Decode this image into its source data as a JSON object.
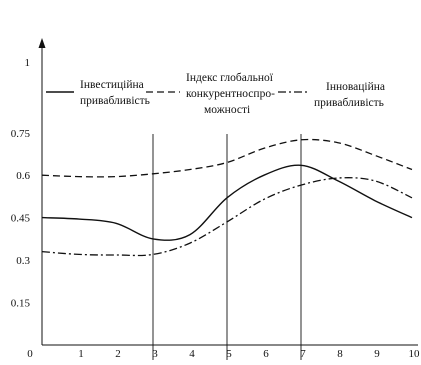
{
  "chart_data": {
    "type": "line",
    "title": "",
    "xlabel": "",
    "ylabel": "",
    "x": [
      0,
      1,
      2,
      3,
      4,
      5,
      6,
      7,
      8,
      9,
      10
    ],
    "xticks": [
      "0",
      "1",
      "2",
      "3",
      "4",
      "5",
      "6",
      "7",
      "8",
      "9",
      "10"
    ],
    "yticks": [
      "0.15",
      "0.3",
      "0.45",
      "0.6",
      "0.75",
      "1"
    ],
    "yticks_values": [
      0.15,
      0.3,
      0.45,
      0.6,
      0.75,
      1
    ],
    "xlim": [
      0,
      10
    ],
    "ylim": [
      0,
      1
    ],
    "vertical_markers": [
      3,
      5,
      7
    ],
    "grid": false,
    "legend_position": "top",
    "series": [
      {
        "name": "Інвестиційна привабливість",
        "style": "solid",
        "values": [
          0.45,
          0.445,
          0.43,
          0.375,
          0.39,
          0.52,
          0.6,
          0.635,
          0.58,
          0.51,
          0.45
        ]
      },
      {
        "name": "Індекс глобальної конкурентноспроможності",
        "style": "dashed",
        "values": [
          0.6,
          0.595,
          0.595,
          0.605,
          0.62,
          0.645,
          0.695,
          0.725,
          0.715,
          0.67,
          0.62
        ]
      },
      {
        "name": "Інноваційна привабливість",
        "style": "dash-dot",
        "values": [
          0.33,
          0.32,
          0.318,
          0.32,
          0.36,
          0.435,
          0.515,
          0.565,
          0.59,
          0.58,
          0.52
        ]
      }
    ]
  },
  "legend": {
    "item1": {
      "line1": "Інвестиційна",
      "line2": "привабливість"
    },
    "item2": {
      "line1": "Індекс глобальної",
      "line2": "конкурентноспро-",
      "line3": "можності"
    },
    "item3": {
      "line1": "Інноваційна",
      "line2": "привабливість"
    }
  },
  "colors": {
    "series": "#111111",
    "axis": "#111111",
    "background": "#ffffff"
  }
}
